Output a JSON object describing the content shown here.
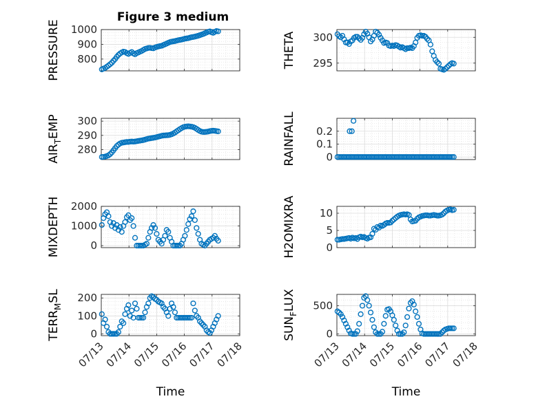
{
  "figure": {
    "title": "Figure 3 medium",
    "marker_color": "#0072BD"
  },
  "chart_data": [
    {
      "type": "scatter",
      "ylabel": "PRESSURE",
      "xlabel": "",
      "xlim": [
        0,
        5
      ],
      "ylim": [
        720,
        1000
      ],
      "yticks": [
        800,
        900,
        1000
      ],
      "xticks": [],
      "grid": true,
      "x": [
        0.02,
        0.08,
        0.14,
        0.2,
        0.26,
        0.32,
        0.38,
        0.44,
        0.5,
        0.56,
        0.62,
        0.68,
        0.74,
        0.8,
        0.86,
        0.92,
        0.98,
        1.04,
        1.1,
        1.16,
        1.22,
        1.28,
        1.34,
        1.4,
        1.46,
        1.52,
        1.58,
        1.64,
        1.7,
        1.76,
        1.82,
        1.88,
        1.94,
        2.0,
        2.06,
        2.12,
        2.18,
        2.24,
        2.3,
        2.36,
        2.42,
        2.48,
        2.54,
        2.6,
        2.66,
        2.72,
        2.78,
        2.84,
        2.9,
        2.96,
        3.02,
        3.08,
        3.14,
        3.2,
        3.26,
        3.32,
        3.38,
        3.44,
        3.5,
        3.56,
        3.62,
        3.68,
        3.74,
        3.8,
        3.86,
        3.92,
        3.98,
        4.04,
        4.1,
        4.16,
        4.22
      ],
      "y": [
        730,
        735,
        740,
        748,
        756,
        765,
        775,
        788,
        800,
        815,
        828,
        838,
        845,
        850,
        848,
        840,
        835,
        842,
        848,
        838,
        832,
        840,
        845,
        850,
        855,
        862,
        868,
        872,
        875,
        876,
        874,
        873,
        878,
        882,
        885,
        888,
        890,
        895,
        900,
        905,
        910,
        915,
        918,
        920,
        922,
        925,
        928,
        930,
        932,
        935,
        938,
        940,
        942,
        945,
        948,
        950,
        952,
        955,
        958,
        962,
        966,
        970,
        975,
        980,
        985,
        988,
        982,
        978,
        985,
        990,
        988
      ]
    },
    {
      "type": "scatter",
      "ylabel": "THETA",
      "xlabel": "",
      "xlim": [
        0,
        5
      ],
      "ylim": [
        293.5,
        301.5
      ],
      "yticks": [
        295,
        300
      ],
      "xticks": [],
      "grid": true,
      "x": [
        0.02,
        0.08,
        0.14,
        0.2,
        0.26,
        0.32,
        0.38,
        0.44,
        0.5,
        0.56,
        0.62,
        0.68,
        0.74,
        0.8,
        0.86,
        0.92,
        0.98,
        1.04,
        1.1,
        1.16,
        1.22,
        1.28,
        1.34,
        1.4,
        1.46,
        1.52,
        1.58,
        1.64,
        1.7,
        1.76,
        1.82,
        1.88,
        1.94,
        2.0,
        2.06,
        2.12,
        2.18,
        2.24,
        2.3,
        2.36,
        2.42,
        2.48,
        2.54,
        2.6,
        2.66,
        2.72,
        2.78,
        2.84,
        2.9,
        2.96,
        3.02,
        3.08,
        3.14,
        3.2,
        3.26,
        3.32,
        3.38,
        3.44,
        3.5,
        3.56,
        3.62,
        3.68,
        3.74,
        3.8,
        3.86,
        3.92,
        3.98,
        4.04,
        4.1,
        4.16,
        4.22
      ],
      "y": [
        300.6,
        300.2,
        300.0,
        300.3,
        299.6,
        299.0,
        299.0,
        298.7,
        299.2,
        299.4,
        299.9,
        300.1,
        300.1,
        299.8,
        299.5,
        299.9,
        300.6,
        301.1,
        300.7,
        300.0,
        299.2,
        299.6,
        300.3,
        301.1,
        300.9,
        300.5,
        299.9,
        299.4,
        298.9,
        299.0,
        298.9,
        298.4,
        298.3,
        298.4,
        298.3,
        298.5,
        298.4,
        298.2,
        298.0,
        298.1,
        297.9,
        297.7,
        297.9,
        297.9,
        298.0,
        297.9,
        298.3,
        299.0,
        299.9,
        300.3,
        300.4,
        300.3,
        300.3,
        300.1,
        299.7,
        299.4,
        298.6,
        297.3,
        296.4,
        295.6,
        295.2,
        294.9,
        293.9,
        293.8,
        293.7,
        293.9,
        294.2,
        294.5,
        294.8,
        295.0,
        294.9
      ]
    },
    {
      "type": "scatter",
      "ylabel": "AIR_TEMP",
      "xlabel": "",
      "xlim": [
        0,
        5
      ],
      "ylim": [
        273,
        302
      ],
      "yticks": [
        280,
        290,
        300
      ],
      "xticks": [],
      "grid": true,
      "x": [
        0.02,
        0.08,
        0.14,
        0.2,
        0.26,
        0.32,
        0.38,
        0.44,
        0.5,
        0.56,
        0.62,
        0.68,
        0.74,
        0.8,
        0.86,
        0.92,
        0.98,
        1.04,
        1.1,
        1.16,
        1.22,
        1.28,
        1.34,
        1.4,
        1.46,
        1.52,
        1.58,
        1.64,
        1.7,
        1.76,
        1.82,
        1.88,
        1.94,
        2.0,
        2.06,
        2.12,
        2.18,
        2.24,
        2.3,
        2.36,
        2.42,
        2.48,
        2.54,
        2.6,
        2.66,
        2.72,
        2.78,
        2.84,
        2.9,
        2.96,
        3.02,
        3.08,
        3.14,
        3.2,
        3.26,
        3.32,
        3.38,
        3.44,
        3.5,
        3.56,
        3.62,
        3.68,
        3.74,
        3.8,
        3.86,
        3.92,
        3.98,
        4.04,
        4.1,
        4.16,
        4.22
      ],
      "y": [
        274.8,
        274.9,
        275.1,
        275.5,
        276.0,
        276.8,
        278.0,
        279.5,
        281.0,
        282.5,
        283.5,
        284.3,
        284.8,
        285.0,
        285.2,
        285.4,
        285.4,
        285.6,
        285.7,
        285.6,
        285.7,
        285.9,
        286.1,
        286.3,
        286.5,
        286.7,
        287.0,
        287.4,
        287.7,
        287.9,
        288.1,
        288.3,
        288.5,
        288.8,
        289.1,
        289.4,
        289.7,
        289.9,
        290.0,
        290.1,
        290.2,
        290.4,
        290.8,
        291.3,
        292.0,
        292.8,
        293.6,
        294.4,
        295.1,
        295.7,
        296.1,
        296.3,
        296.4,
        296.3,
        296.1,
        295.8,
        295.3,
        294.6,
        293.8,
        293.1,
        292.6,
        292.4,
        292.4,
        292.5,
        292.7,
        293.0,
        293.2,
        293.3,
        293.2,
        293.0,
        292.8
      ]
    },
    {
      "type": "scatter",
      "ylabel": "RAINFALL",
      "xlabel": "",
      "xlim": [
        0,
        5
      ],
      "ylim": [
        -0.02,
        0.3
      ],
      "yticks": [
        0,
        0.1,
        0.2
      ],
      "xticks": [],
      "grid": true,
      "x": [
        0.02,
        0.08,
        0.14,
        0.2,
        0.26,
        0.32,
        0.38,
        0.44,
        0.5,
        0.56,
        0.62,
        0.68,
        0.74,
        0.8,
        0.86,
        0.92,
        0.98,
        1.04,
        1.1,
        1.16,
        1.22,
        1.28,
        1.34,
        1.4,
        1.46,
        1.52,
        1.58,
        1.64,
        1.7,
        1.76,
        1.82,
        1.88,
        1.94,
        2.0,
        2.06,
        2.12,
        2.18,
        2.24,
        2.3,
        2.36,
        2.42,
        2.48,
        2.54,
        2.6,
        2.66,
        2.72,
        2.78,
        2.84,
        2.9,
        2.96,
        3.02,
        3.08,
        3.14,
        3.2,
        3.26,
        3.32,
        3.38,
        3.44,
        3.5,
        3.56,
        3.62,
        3.68,
        3.74,
        3.8,
        3.86,
        3.92,
        3.98,
        4.04,
        4.1,
        4.16,
        4.22,
        0.46,
        0.54,
        0.6
      ],
      "y": [
        0,
        0,
        0,
        0,
        0,
        0,
        0,
        0,
        0,
        0,
        0,
        0,
        0,
        0,
        0,
        0,
        0,
        0,
        0,
        0,
        0,
        0,
        0,
        0,
        0,
        0,
        0,
        0,
        0,
        0,
        0,
        0,
        0,
        0,
        0,
        0,
        0,
        0,
        0,
        0,
        0,
        0,
        0,
        0,
        0,
        0,
        0,
        0,
        0,
        0,
        0,
        0,
        0,
        0,
        0,
        0,
        0,
        0,
        0,
        0,
        0,
        0,
        0,
        0,
        0,
        0,
        0,
        0,
        0,
        0,
        0,
        0.2,
        0.2,
        0.28
      ]
    },
    {
      "type": "scatter",
      "ylabel": "MIXDEPTH",
      "xlabel": "",
      "xlim": [
        0,
        5
      ],
      "ylim": [
        -100,
        2000
      ],
      "yticks": [
        0,
        1000,
        2000
      ],
      "xticks": [],
      "grid": true,
      "x": [
        0.02,
        0.08,
        0.14,
        0.2,
        0.26,
        0.32,
        0.38,
        0.44,
        0.5,
        0.56,
        0.62,
        0.68,
        0.74,
        0.8,
        0.86,
        0.92,
        0.98,
        1.04,
        1.1,
        1.16,
        1.22,
        1.28,
        1.34,
        1.4,
        1.46,
        1.52,
        1.58,
        1.64,
        1.7,
        1.76,
        1.82,
        1.88,
        1.94,
        2.0,
        2.06,
        2.12,
        2.18,
        2.24,
        2.3,
        2.36,
        2.42,
        2.48,
        2.54,
        2.6,
        2.66,
        2.72,
        2.78,
        2.84,
        2.9,
        2.96,
        3.02,
        3.08,
        3.14,
        3.2,
        3.26,
        3.32,
        3.38,
        3.44,
        3.5,
        3.56,
        3.62,
        3.68,
        3.74,
        3.8,
        3.86,
        3.92,
        3.98,
        4.04,
        4.1,
        4.16,
        4.22
      ],
      "y": [
        1050,
        1400,
        1600,
        1700,
        1500,
        1200,
        1000,
        1150,
        900,
        1050,
        800,
        950,
        700,
        1000,
        1200,
        1450,
        1550,
        1300,
        1400,
        1000,
        400,
        0,
        0,
        0,
        0,
        0,
        50,
        100,
        400,
        700,
        900,
        1050,
        900,
        600,
        300,
        200,
        100,
        300,
        500,
        800,
        700,
        400,
        200,
        0,
        0,
        0,
        0,
        0,
        100,
        300,
        500,
        800,
        1100,
        1350,
        1500,
        1750,
        1300,
        900,
        600,
        300,
        100,
        50,
        0,
        100,
        200,
        300,
        350,
        400,
        500,
        350,
        250
      ]
    },
    {
      "type": "scatter",
      "ylabel": "H2OMIXRA",
      "xlabel": "",
      "xlim": [
        0,
        5
      ],
      "ylim": [
        0,
        12
      ],
      "yticks": [
        0,
        5,
        10
      ],
      "xticks": [],
      "grid": true,
      "x": [
        0.02,
        0.08,
        0.14,
        0.2,
        0.26,
        0.32,
        0.38,
        0.44,
        0.5,
        0.56,
        0.62,
        0.68,
        0.74,
        0.8,
        0.86,
        0.92,
        0.98,
        1.04,
        1.1,
        1.16,
        1.22,
        1.28,
        1.34,
        1.4,
        1.46,
        1.52,
        1.58,
        1.64,
        1.7,
        1.76,
        1.82,
        1.88,
        1.94,
        2.0,
        2.06,
        2.12,
        2.18,
        2.24,
        2.3,
        2.36,
        2.42,
        2.48,
        2.54,
        2.6,
        2.66,
        2.72,
        2.78,
        2.84,
        2.9,
        2.96,
        3.02,
        3.08,
        3.14,
        3.2,
        3.26,
        3.32,
        3.38,
        3.44,
        3.5,
        3.56,
        3.62,
        3.68,
        3.74,
        3.8,
        3.86,
        3.92,
        3.98,
        4.04,
        4.1,
        4.16,
        4.22
      ],
      "y": [
        2.3,
        2.3,
        2.4,
        2.5,
        2.5,
        2.6,
        2.7,
        2.8,
        2.6,
        2.9,
        2.7,
        2.8,
        2.5,
        3.0,
        3.2,
        3.0,
        3.1,
        2.8,
        2.6,
        2.9,
        3.0,
        4.0,
        5.5,
        5.2,
        6.0,
        5.8,
        6.4,
        6.3,
        6.6,
        7.0,
        7.2,
        7.2,
        7.3,
        7.8,
        8.2,
        8.6,
        9.0,
        9.3,
        9.5,
        9.6,
        9.7,
        9.6,
        9.7,
        9.5,
        8.2,
        7.6,
        7.7,
        7.8,
        8.4,
        8.8,
        9.0,
        9.2,
        9.3,
        9.4,
        9.4,
        9.3,
        9.3,
        9.4,
        9.5,
        9.4,
        9.3,
        9.3,
        9.4,
        9.6,
        10.0,
        10.5,
        10.8,
        11.0,
        11.1,
        10.9,
        11.0
      ]
    },
    {
      "type": "scatter",
      "ylabel": "TERR_MSL",
      "xlabel": "Time",
      "xlim": [
        0,
        5
      ],
      "ylim": [
        -10,
        220
      ],
      "yticks": [
        0,
        100,
        200
      ],
      "xticks": [
        "07/13",
        "07/14",
        "07/15",
        "07/16",
        "07/17",
        "07/18"
      ],
      "grid": true,
      "x": [
        0.02,
        0.08,
        0.14,
        0.2,
        0.26,
        0.32,
        0.38,
        0.44,
        0.5,
        0.56,
        0.62,
        0.68,
        0.74,
        0.8,
        0.86,
        0.92,
        0.98,
        1.04,
        1.1,
        1.16,
        1.22,
        1.28,
        1.34,
        1.4,
        1.46,
        1.52,
        1.58,
        1.64,
        1.7,
        1.76,
        1.82,
        1.88,
        1.94,
        2.0,
        2.06,
        2.12,
        2.18,
        2.24,
        2.3,
        2.36,
        2.42,
        2.48,
        2.54,
        2.6,
        2.66,
        2.72,
        2.78,
        2.84,
        2.9,
        2.96,
        3.02,
        3.08,
        3.14,
        3.2,
        3.26,
        3.32,
        3.38,
        3.44,
        3.5,
        3.56,
        3.62,
        3.68,
        3.74,
        3.8,
        3.86,
        3.92,
        3.98,
        4.04,
        4.1,
        4.16,
        4.22
      ],
      "y": [
        110,
        60,
        80,
        40,
        10,
        0,
        0,
        0,
        0,
        0,
        10,
        40,
        70,
        60,
        110,
        140,
        160,
        100,
        130,
        90,
        170,
        140,
        90,
        90,
        90,
        90,
        120,
        150,
        170,
        200,
        210,
        205,
        195,
        190,
        180,
        175,
        170,
        150,
        140,
        120,
        100,
        140,
        170,
        150,
        120,
        90,
        90,
        90,
        90,
        90,
        90,
        90,
        90,
        90,
        90,
        170,
        130,
        100,
        90,
        70,
        60,
        50,
        40,
        20,
        10,
        5,
        20,
        40,
        60,
        80,
        100
      ]
    },
    {
      "type": "scatter",
      "ylabel": "SUN_FLUX",
      "xlabel": "Time",
      "xlim": [
        0,
        5
      ],
      "ylim": [
        -30,
        700
      ],
      "yticks": [
        0,
        500
      ],
      "xticks": [
        "07/13",
        "07/14",
        "07/15",
        "07/16",
        "07/17",
        "07/18"
      ],
      "grid": true,
      "x": [
        0.02,
        0.08,
        0.14,
        0.2,
        0.26,
        0.32,
        0.38,
        0.44,
        0.5,
        0.56,
        0.62,
        0.68,
        0.74,
        0.8,
        0.86,
        0.92,
        0.98,
        1.04,
        1.1,
        1.16,
        1.22,
        1.28,
        1.34,
        1.4,
        1.46,
        1.52,
        1.58,
        1.64,
        1.7,
        1.76,
        1.82,
        1.88,
        1.94,
        2.0,
        2.06,
        2.12,
        2.18,
        2.24,
        2.3,
        2.36,
        2.42,
        2.48,
        2.54,
        2.6,
        2.66,
        2.72,
        2.78,
        2.84,
        2.9,
        2.96,
        3.02,
        3.08,
        3.14,
        3.2,
        3.26,
        3.32,
        3.38,
        3.44,
        3.5,
        3.56,
        3.62,
        3.68,
        3.74,
        3.8,
        3.86,
        3.92,
        3.98,
        4.04,
        4.1,
        4.16,
        4.22
      ],
      "y": [
        400,
        380,
        350,
        300,
        240,
        180,
        120,
        60,
        10,
        0,
        0,
        0,
        50,
        180,
        350,
        500,
        640,
        670,
        600,
        500,
        380,
        250,
        120,
        30,
        0,
        0,
        0,
        40,
        180,
        320,
        430,
        440,
        400,
        330,
        250,
        150,
        60,
        0,
        0,
        0,
        30,
        150,
        300,
        450,
        550,
        580,
        520,
        400,
        300,
        180,
        80,
        10,
        0,
        0,
        0,
        0,
        0,
        0,
        0,
        0,
        0,
        0,
        0,
        30,
        60,
        80,
        90,
        100,
        100,
        100,
        100
      ]
    }
  ]
}
